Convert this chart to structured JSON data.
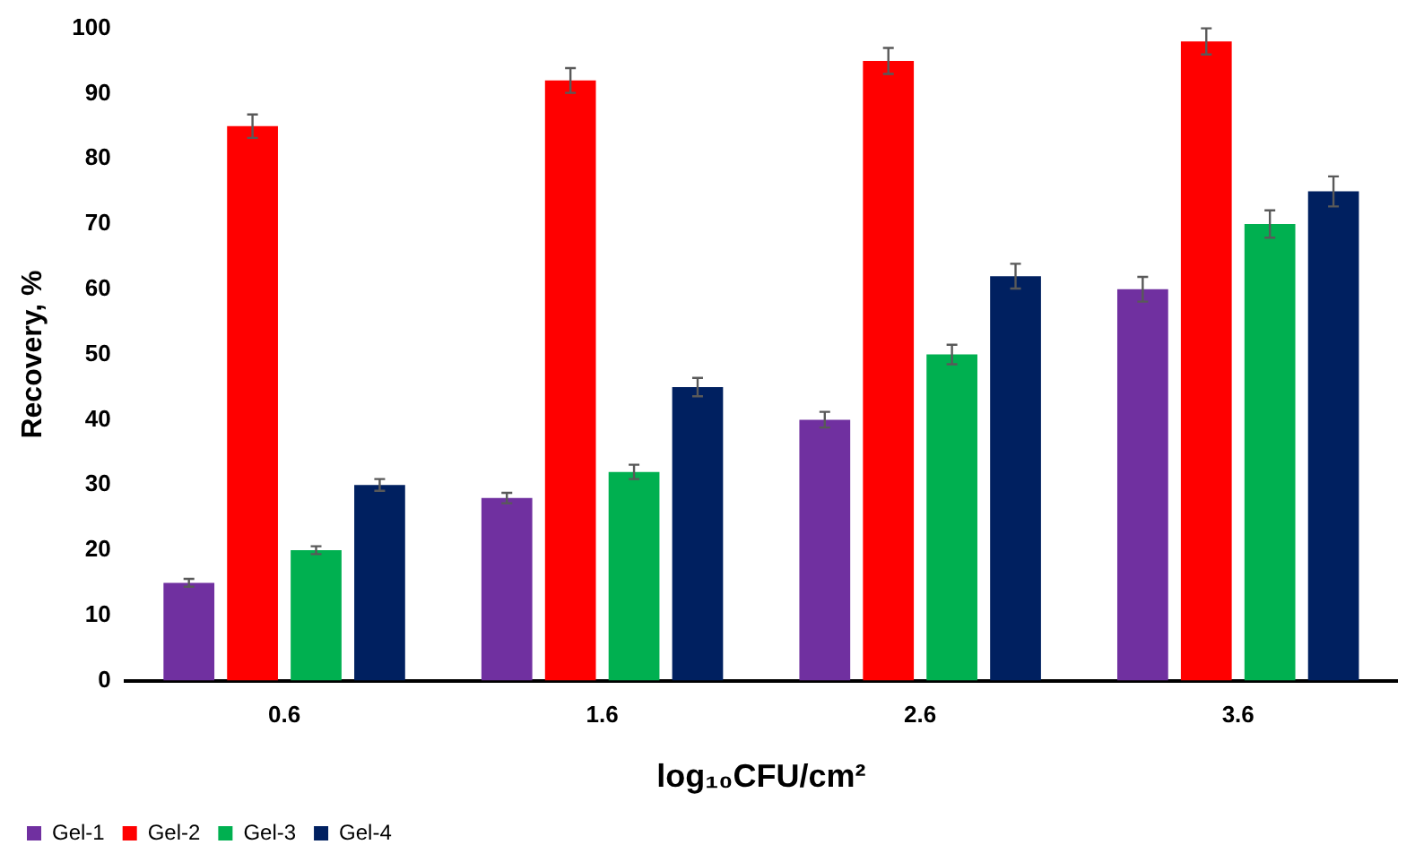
{
  "chart_data": {
    "type": "bar",
    "xlabel": "log₁₀CFU/cm²",
    "ylabel": "Recovery, %",
    "categories": [
      "0.6",
      "1.6",
      "2.6",
      "3.6"
    ],
    "series": [
      {
        "name": "Gel-1",
        "color": "#7030a0",
        "values": [
          15,
          28,
          40,
          60
        ],
        "errors": [
          0.6,
          0.8,
          1.2,
          1.9
        ]
      },
      {
        "name": "Gel-2",
        "color": "#ff0000",
        "values": [
          85,
          92,
          95,
          98
        ],
        "errors": [
          1.8,
          1.9,
          2,
          2
        ]
      },
      {
        "name": "Gel-3",
        "color": "#00b050",
        "values": [
          20,
          32,
          50,
          70
        ],
        "errors": [
          0.6,
          1.1,
          1.5,
          2.1
        ]
      },
      {
        "name": "Gel-4",
        "color": "#002060",
        "values": [
          30,
          45,
          62,
          75
        ],
        "errors": [
          0.9,
          1.4,
          1.9,
          2.3
        ]
      }
    ],
    "ylim": [
      0,
      100
    ],
    "yticks": [
      0,
      10,
      20,
      30,
      40,
      50,
      60,
      70,
      80,
      90,
      100
    ],
    "grid": false,
    "legend": "bottom left"
  }
}
